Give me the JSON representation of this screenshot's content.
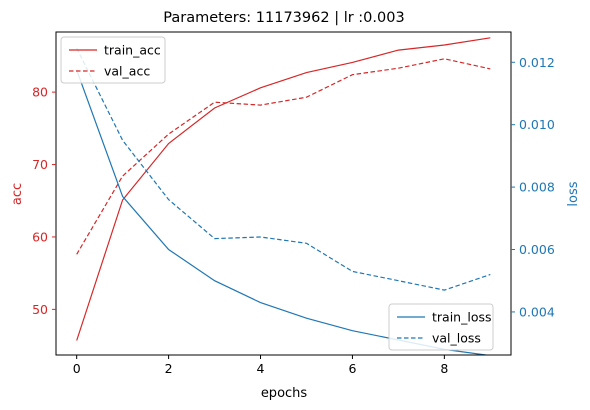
{
  "chart_data": {
    "type": "line",
    "title": "Parameters: 11173962 | lr :0.003",
    "xlabel": "epochs",
    "ylabel_left": "acc",
    "ylabel_right": "loss",
    "x": [
      0,
      1,
      2,
      3,
      4,
      5,
      6,
      7,
      8,
      9
    ],
    "xlim": [
      -0.45,
      9.45
    ],
    "xticks": [
      "0",
      "2",
      "4",
      "6",
      "8"
    ],
    "xtick_values": [
      0,
      2,
      4,
      6,
      8
    ],
    "ylim_left": [
      43.7,
      88.3
    ],
    "yticks_left": [
      "50",
      "60",
      "70",
      "80"
    ],
    "ytick_values_left": [
      50,
      60,
      70,
      80
    ],
    "ylim_right": [
      0.00262,
      0.01297
    ],
    "yticks_right": [
      "0.004",
      "0.006",
      "0.008",
      "0.010",
      "0.012"
    ],
    "ytick_values_right": [
      0.004,
      0.006,
      0.008,
      0.01,
      0.012
    ],
    "grid": false,
    "left_axis_color": "#d62728",
    "right_axis_color": "#1f77b4",
    "series_left": [
      {
        "name": "train_acc",
        "style": "solid",
        "color": "#d62728",
        "values": [
          45.7,
          65.1,
          72.9,
          77.8,
          80.6,
          82.7,
          84.1,
          85.8,
          86.5,
          87.5
        ]
      },
      {
        "name": "val_acc",
        "style": "dashed",
        "color": "#d62728",
        "values": [
          57.6,
          68.4,
          74.2,
          78.6,
          78.2,
          79.3,
          82.4,
          83.3,
          84.6,
          83.2
        ]
      }
    ],
    "series_right": [
      {
        "name": "train_loss",
        "style": "solid",
        "color": "#1f77b4",
        "values": [
          0.01175,
          0.0077,
          0.006,
          0.005,
          0.0043,
          0.0038,
          0.0034,
          0.0031,
          0.0028,
          0.0026
        ]
      },
      {
        "name": "val_loss",
        "style": "dashed",
        "color": "#1f77b4",
        "values": [
          0.01245,
          0.0095,
          0.0076,
          0.00635,
          0.0064,
          0.0062,
          0.0053,
          0.005,
          0.0047,
          0.0052
        ]
      }
    ],
    "legend_left_placement": "top-left",
    "legend_right_placement": "bottom-right"
  }
}
